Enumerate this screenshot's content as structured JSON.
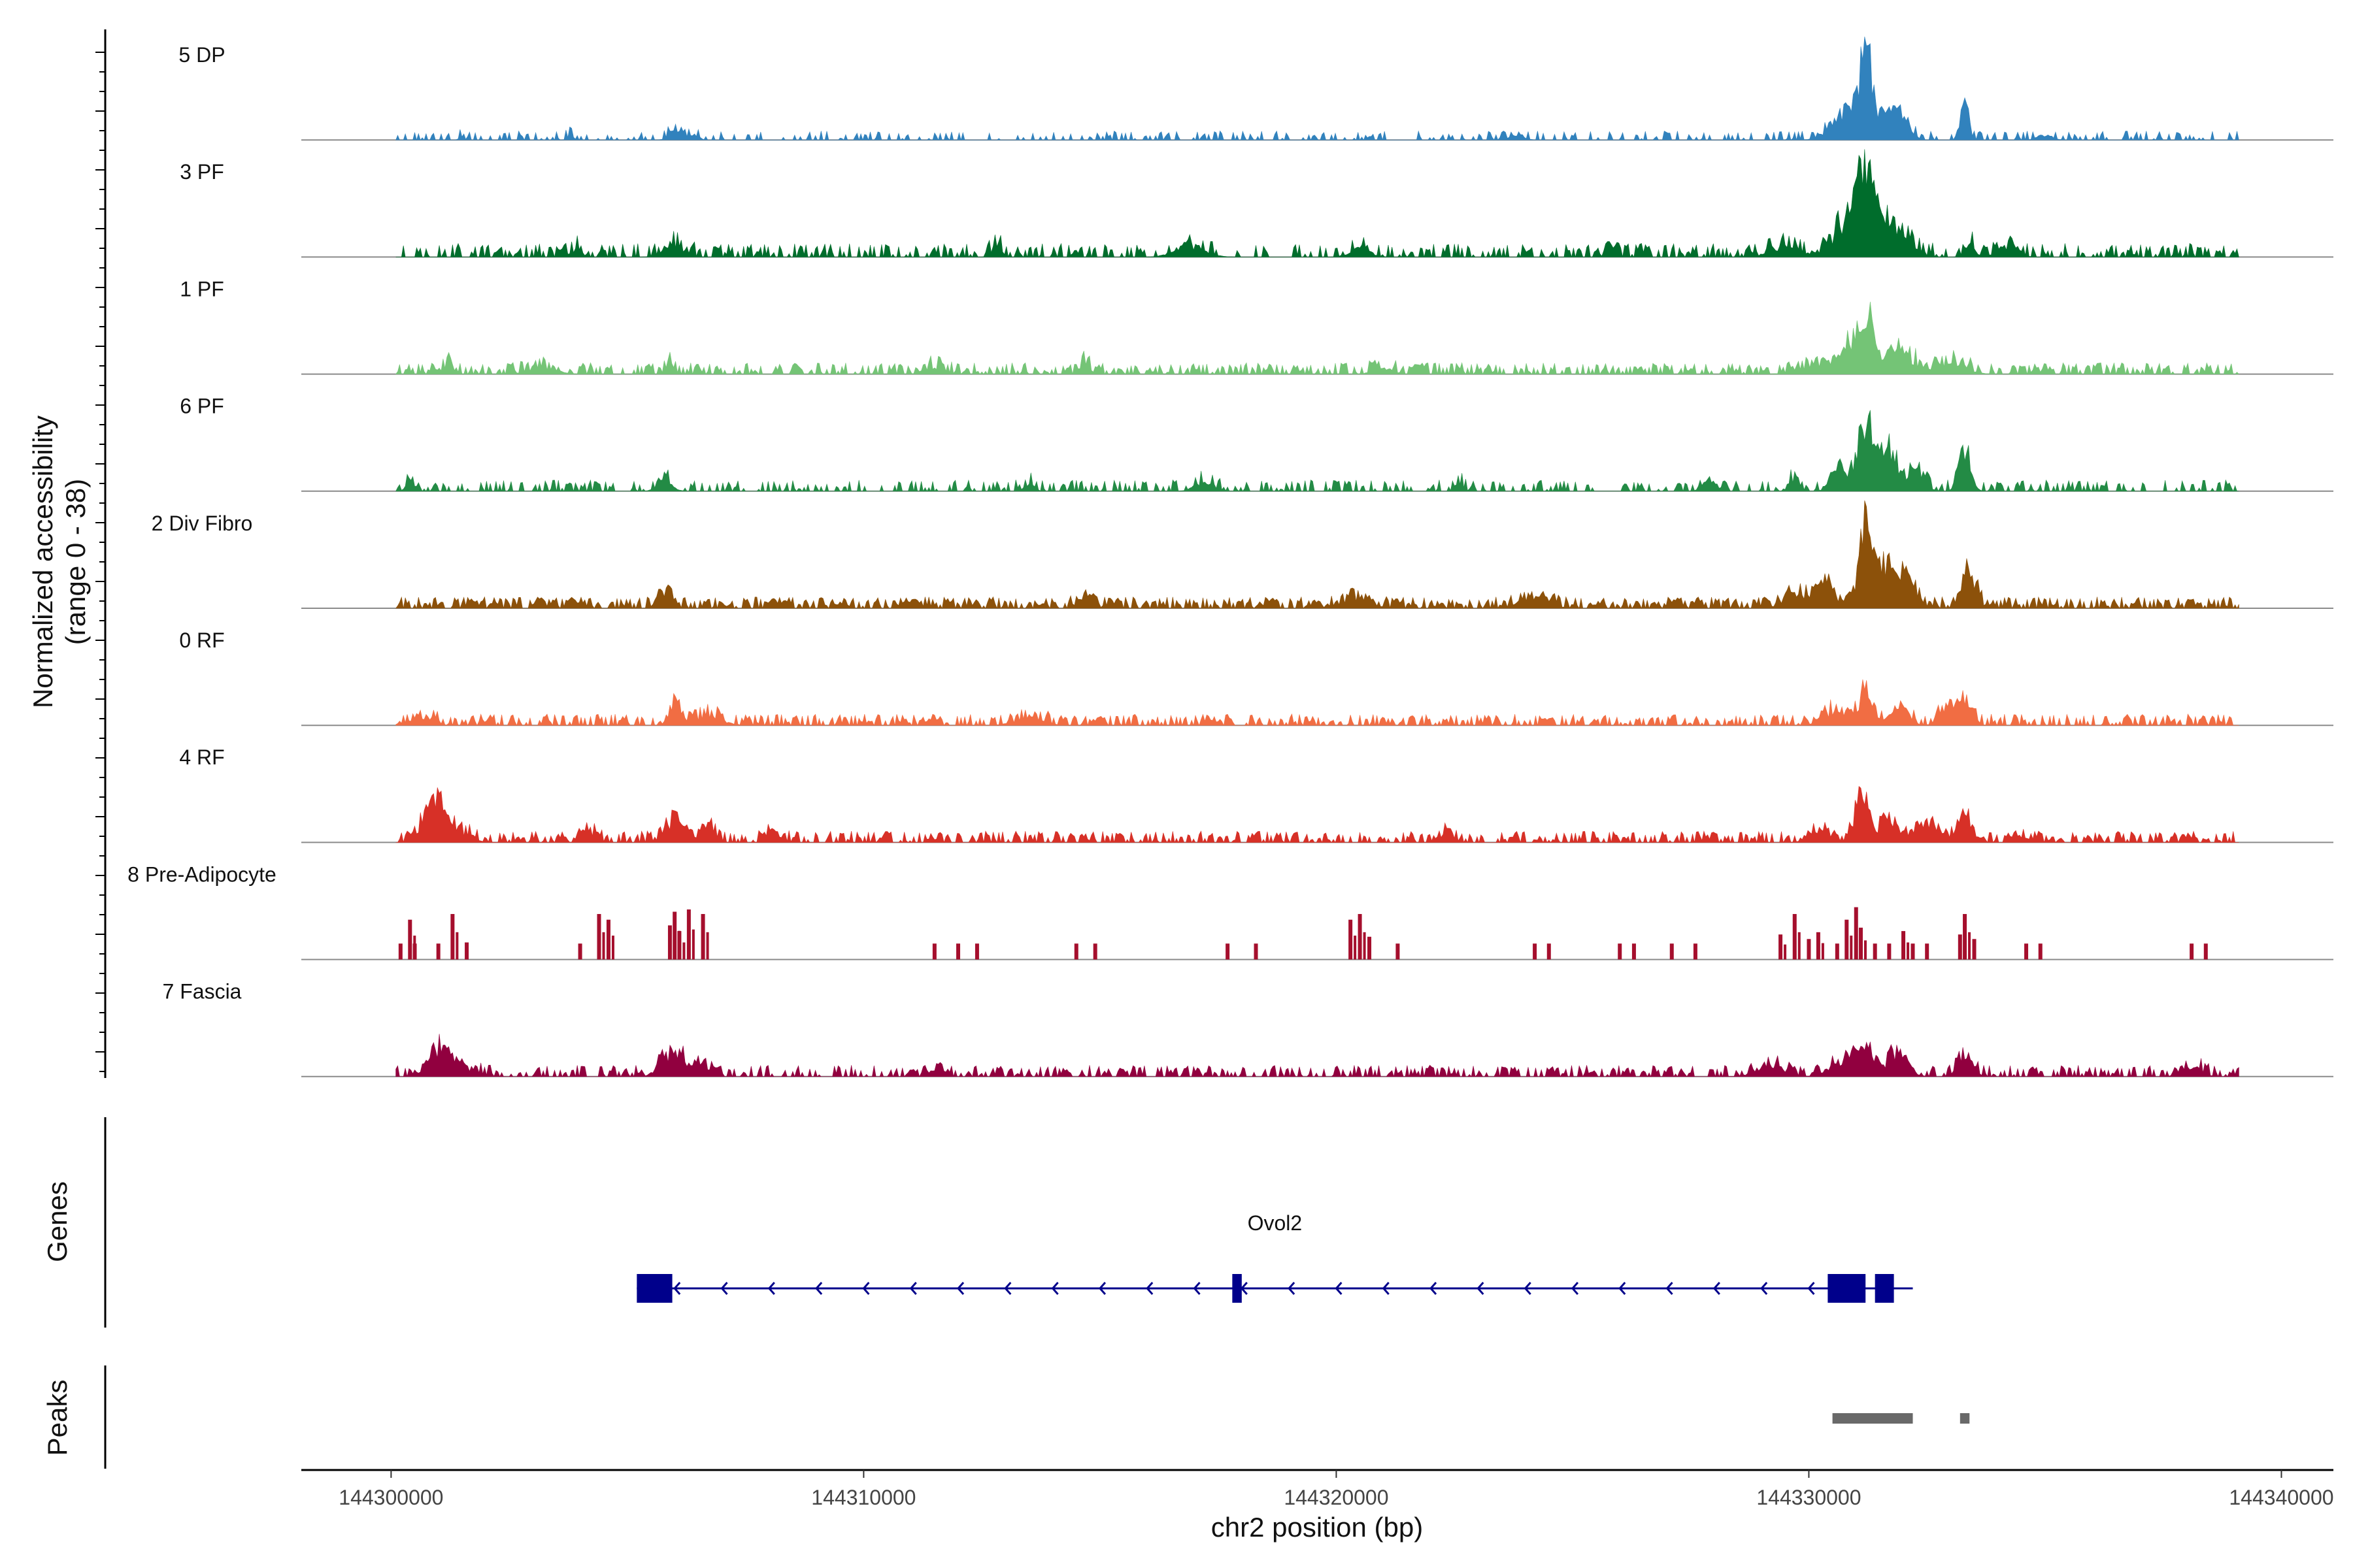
{
  "chart_data": {
    "type": "genome-coverage-tracks",
    "y_axis_title_line1": "Normalized accessibility",
    "y_axis_title_line2": "(range 0 - 38)",
    "y_range": [
      0,
      38
    ],
    "x_axis_title": "chr2 position (bp)",
    "x_range": [
      144298100,
      144341100
    ],
    "x_ticks": [
      144300000,
      144310000,
      144320000,
      144330000,
      144340000
    ],
    "data_extent": [
      144300100,
      144339100
    ],
    "tracks": [
      {
        "name": "5 DP",
        "color": "#3182bd",
        "baseline": 0.4,
        "noise_density": 0.35,
        "peaks": [
          [
            144301500,
            0.25,
            60
          ],
          [
            144303800,
            0.55,
            60
          ],
          [
            144306000,
            1.0,
            120
          ],
          [
            144306400,
            0.55,
            100
          ],
          [
            144323800,
            0.5,
            150
          ],
          [
            144330800,
            2.8,
            300
          ],
          [
            144331200,
            8.5,
            120
          ],
          [
            144331700,
            2.8,
            200
          ],
          [
            144332000,
            1.8,
            150
          ],
          [
            144333300,
            3.8,
            80
          ],
          [
            144335000,
            0.5,
            150
          ]
        ]
      },
      {
        "name": "3 PF",
        "color": "#006d2c",
        "baseline": 0.6,
        "noise_density": 0.5,
        "peaks": [
          [
            144303900,
            0.7,
            120
          ],
          [
            144306000,
            1.0,
            220
          ],
          [
            144312800,
            1.1,
            100
          ],
          [
            144316900,
            1.1,
            300
          ],
          [
            144320500,
            0.9,
            200
          ],
          [
            144325800,
            1.3,
            80
          ],
          [
            144329500,
            1.0,
            300
          ],
          [
            144330800,
            3.0,
            300
          ],
          [
            144331200,
            7.5,
            200
          ],
          [
            144331800,
            3.0,
            300
          ],
          [
            144333400,
            1.6,
            100
          ],
          [
            144334200,
            1.0,
            200
          ]
        ]
      },
      {
        "name": "1 PF",
        "color": "#74c476",
        "baseline": 0.5,
        "noise_density": 0.6,
        "peaks": [
          [
            144301200,
            1.0,
            120
          ],
          [
            144303200,
            0.6,
            300
          ],
          [
            144305900,
            1.0,
            80
          ],
          [
            144311500,
            0.7,
            200
          ],
          [
            144314700,
            1.3,
            80
          ],
          [
            144321000,
            0.6,
            200
          ],
          [
            144330300,
            1.0,
            400
          ],
          [
            144331000,
            3.0,
            250
          ],
          [
            144331300,
            4.0,
            100
          ],
          [
            144331900,
            2.2,
            300
          ],
          [
            144333000,
            1.2,
            300
          ]
        ]
      },
      {
        "name": "6 PF",
        "color": "#238b45",
        "baseline": 0.5,
        "noise_density": 0.45,
        "peaks": [
          [
            144300400,
            0.9,
            80
          ],
          [
            144305800,
            1.0,
            150
          ],
          [
            144313500,
            0.8,
            100
          ],
          [
            144317200,
            0.9,
            200
          ],
          [
            144322600,
            1.0,
            80
          ],
          [
            144327900,
            1.0,
            150
          ],
          [
            144329700,
            1.3,
            100
          ],
          [
            144330600,
            2.2,
            150
          ],
          [
            144331200,
            6.5,
            180
          ],
          [
            144331700,
            4.0,
            200
          ],
          [
            144332300,
            2.0,
            150
          ],
          [
            144333300,
            3.8,
            120
          ]
        ]
      },
      {
        "name": "2 Div Fibro",
        "color": "#8c510a",
        "baseline": 0.5,
        "noise_density": 0.75,
        "peaks": [
          [
            144305800,
            1.4,
            150
          ],
          [
            144314700,
            0.9,
            150
          ],
          [
            144320400,
            0.9,
            300
          ],
          [
            144324200,
            0.9,
            300
          ],
          [
            144329800,
            1.4,
            300
          ],
          [
            144330400,
            2.2,
            150
          ],
          [
            144331200,
            7.0,
            150
          ],
          [
            144331600,
            3.8,
            250
          ],
          [
            144332100,
            2.2,
            200
          ],
          [
            144333400,
            3.2,
            150
          ]
        ]
      },
      {
        "name": "0 RF",
        "color": "#f16d43",
        "baseline": 0.5,
        "noise_density": 0.6,
        "peaks": [
          [
            144300600,
            0.8,
            250
          ],
          [
            144306000,
            2.2,
            120
          ],
          [
            144306700,
            0.8,
            300
          ],
          [
            144313500,
            0.7,
            300
          ],
          [
            144330500,
            1.2,
            250
          ],
          [
            144331200,
            3.2,
            150
          ],
          [
            144331900,
            1.3,
            200
          ],
          [
            144332900,
            1.7,
            150
          ],
          [
            144333300,
            2.3,
            150
          ]
        ]
      },
      {
        "name": "4 RF",
        "color": "#d73027",
        "baseline": 0.5,
        "noise_density": 0.6,
        "peaks": [
          [
            144300900,
            3.8,
            200
          ],
          [
            144301300,
            1.2,
            300
          ],
          [
            144304200,
            1.0,
            150
          ],
          [
            144306000,
            2.2,
            200
          ],
          [
            144306700,
            1.3,
            150
          ],
          [
            144308100,
            0.9,
            150
          ],
          [
            144322300,
            0.8,
            150
          ],
          [
            144330200,
            1.2,
            200
          ],
          [
            144331100,
            4.0,
            150
          ],
          [
            144331700,
            2.0,
            200
          ],
          [
            144332500,
            1.6,
            250
          ],
          [
            144333300,
            2.2,
            150
          ],
          [
            144334400,
            0.9,
            100
          ]
        ]
      },
      {
        "name": "8 Pre-Adipocyte",
        "color": "#a50f2d",
        "style": "bars",
        "bars": [
          [
            144300200,
            1.4
          ],
          [
            144300400,
            3.5
          ],
          [
            144300500,
            1.4
          ],
          [
            144301000,
            1.4
          ],
          [
            144301300,
            4.0
          ],
          [
            144301600,
            1.5
          ],
          [
            144304000,
            1.4
          ],
          [
            144304400,
            4.0
          ],
          [
            144304600,
            3.5
          ],
          [
            144305900,
            3.0
          ],
          [
            144306000,
            4.2
          ],
          [
            144306100,
            2.5
          ],
          [
            144306300,
            4.4
          ],
          [
            144306600,
            4.0
          ],
          [
            144311500,
            1.4
          ],
          [
            144312000,
            1.4
          ],
          [
            144312400,
            1.4
          ],
          [
            144314500,
            1.4
          ],
          [
            144314900,
            1.4
          ],
          [
            144317700,
            1.4
          ],
          [
            144318300,
            1.4
          ],
          [
            144320300,
            3.5
          ],
          [
            144320500,
            4.0
          ],
          [
            144320700,
            2.0
          ],
          [
            144321300,
            1.4
          ],
          [
            144324200,
            1.4
          ],
          [
            144324500,
            1.4
          ],
          [
            144326000,
            1.4
          ],
          [
            144326300,
            1.4
          ],
          [
            144327100,
            1.4
          ],
          [
            144327600,
            1.4
          ],
          [
            144329400,
            2.2
          ],
          [
            144329700,
            4.0
          ],
          [
            144330000,
            1.8
          ],
          [
            144330200,
            2.4
          ],
          [
            144330600,
            1.4
          ],
          [
            144330800,
            3.5
          ],
          [
            144331000,
            4.6
          ],
          [
            144331100,
            2.8
          ],
          [
            144331400,
            1.4
          ],
          [
            144331700,
            1.4
          ],
          [
            144332000,
            2.5
          ],
          [
            144332200,
            1.4
          ],
          [
            144332500,
            1.4
          ],
          [
            144333200,
            2.2
          ],
          [
            144333300,
            4.0
          ],
          [
            144333500,
            1.8
          ],
          [
            144334600,
            1.4
          ],
          [
            144334900,
            1.4
          ],
          [
            144338100,
            1.4
          ],
          [
            144338400,
            1.4
          ]
        ]
      },
      {
        "name": "7 Fascia",
        "color": "#91003f",
        "baseline": 0.5,
        "noise_density": 0.55,
        "peaks": [
          [
            144301000,
            2.3,
            200
          ],
          [
            144301400,
            1.0,
            300
          ],
          [
            144306000,
            2.3,
            250
          ],
          [
            144306600,
            0.9,
            150
          ],
          [
            144311600,
            1.1,
            100
          ],
          [
            144329200,
            0.9,
            300
          ],
          [
            144330700,
            1.3,
            250
          ],
          [
            144331200,
            2.8,
            200
          ],
          [
            144331900,
            2.2,
            200
          ],
          [
            144333300,
            2.0,
            150
          ],
          [
            144338100,
            0.9,
            200
          ]
        ]
      }
    ],
    "gene_panel_title": "Genes",
    "gene": {
      "name": "Ovol2",
      "start": 144305200,
      "end": 144332200,
      "strand": "-",
      "exons": [
        [
          144305200,
          144305950
        ],
        [
          144317800,
          144318000
        ],
        [
          144330400,
          144331200
        ],
        [
          144331400,
          144331800
        ]
      ],
      "color": "#00008b"
    },
    "peaks_panel_title": "Peaks",
    "peak_regions": [
      [
        144330500,
        144332200
      ],
      [
        144333200,
        144333400
      ]
    ],
    "peak_color": "#696969"
  }
}
